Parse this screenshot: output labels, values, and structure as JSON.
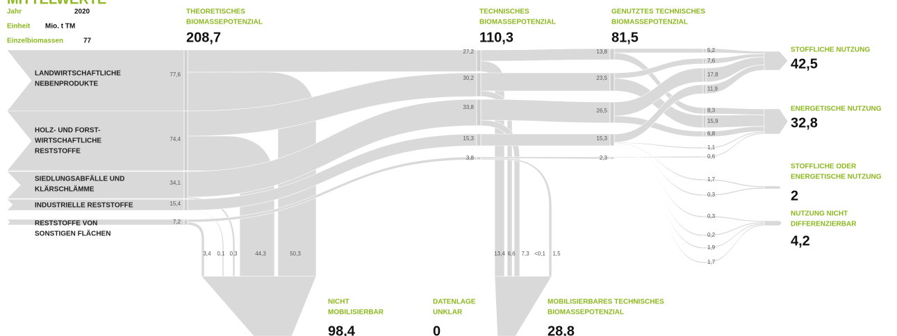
{
  "header": {
    "title": "MITTELWERTE",
    "rows": [
      {
        "label": "Jahr",
        "value": "2020"
      },
      {
        "label": "Einheit",
        "value": "Mio. t TM"
      },
      {
        "label": "Einzelbiomassen",
        "value": "77"
      }
    ]
  },
  "stages": [
    {
      "label": [
        "THEORETISCHES",
        "BIOMASSEPOTENZIAL"
      ],
      "value": "208,7"
    },
    {
      "label": [
        "TECHNISCHES",
        "BIOMASSEPOTENZIAL"
      ],
      "value": "110,3"
    },
    {
      "label": [
        "GENUTZTES TECHNISCHES",
        "BIOMASSEPOTENZIAL"
      ],
      "value": "81,5"
    }
  ],
  "sources": [
    {
      "label": [
        "LANDWIRTSCHAFTLICHE",
        "NEBENPRODUKTE"
      ],
      "value": "77,6"
    },
    {
      "label": [
        "HOLZ- UND FORST-",
        "WIRTSCHAFTLICHE",
        "RESTSTOFFE"
      ],
      "value": "74,4"
    },
    {
      "label": [
        "SIEDLUNGSABFÄLLE UND",
        "KLÄRSCHLÄMME"
      ],
      "value": "34,1"
    },
    {
      "label": [
        "INDUSTRIELLE RESTSTOFFE"
      ],
      "value": "15,4"
    },
    {
      "label": [
        "RESTSTOFFE VON",
        "SONSTIGEN FLÄCHEN"
      ],
      "value": "7,2"
    }
  ],
  "technical_values": [
    "27,2",
    "30,2",
    "33,8",
    "15,3",
    "3,8"
  ],
  "used_values": [
    "13,8",
    "23,5",
    "26,5",
    "15,3",
    "2,3"
  ],
  "output_values": [
    "5,2",
    "7,6",
    "17,8",
    "11,9",
    "8,3",
    "15,9",
    "6,8",
    "1,1",
    "0,6",
    "1,7",
    "0,3",
    "0,3",
    "0,2",
    "1,9",
    "1,7"
  ],
  "uses": [
    {
      "label": [
        "STOFFLICHE NUTZUNG"
      ],
      "value": "42,5"
    },
    {
      "label": [
        "ENERGETISCHE NUTZUNG"
      ],
      "value": "32,8"
    },
    {
      "label": [
        "STOFFLICHE ODER",
        "ENERGETISCHE NUTZUNG"
      ],
      "value": "2"
    },
    {
      "label": [
        "NUTZUNG NICHT",
        "DIFFERENZIERBAR"
      ],
      "value": "4,2"
    }
  ],
  "theoretical_losses": [
    "3,4",
    "0,1",
    "0,3",
    "44,3",
    "50,3"
  ],
  "technical_losses": [
    "13,4",
    "6,6",
    "7,3",
    "<0,1",
    "1,5"
  ],
  "sinks": [
    {
      "label": [
        "NICHT",
        "MOBILISIERBAR"
      ],
      "value": "98,4"
    },
    {
      "label": [
        "DATENLAGE",
        "UNKLAR"
      ],
      "value": "0"
    },
    {
      "label": [
        "MOBILISIERBARES TECHNISCHES",
        "BIOMASSEPOTENZIAL"
      ],
      "value": "28,8"
    }
  ]
}
